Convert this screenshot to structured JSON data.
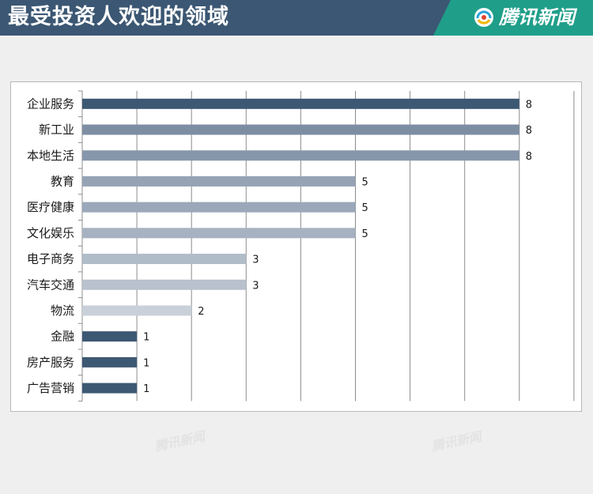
{
  "header": {
    "title": "最受投资人欢迎的领域",
    "logo_text": "腾讯新闻",
    "logo_icon": "tencent-news-logo-icon",
    "watermark_text": "腾讯新闻"
  },
  "colors": {
    "header_bg": "#3b5773",
    "logo_bg": "#1f9e89",
    "page_bg": "#efefef"
  },
  "chart_data": {
    "type": "bar",
    "orientation": "horizontal",
    "title": "",
    "xlabel": "",
    "ylabel": "",
    "xlim": [
      0,
      9
    ],
    "grid": true,
    "legend": "none",
    "categories": [
      "企业服务",
      "新工业",
      "本地生活",
      "教育",
      "医疗健康",
      "文化娱乐",
      "电子商务",
      "汽车交通",
      "物流",
      "金融",
      "房产服务",
      "广告营销"
    ],
    "values": [
      8,
      8,
      8,
      5,
      5,
      5,
      3,
      3,
      2,
      1,
      1,
      1
    ],
    "data_labels": [
      "8",
      "8",
      "8",
      "5",
      "5",
      "5",
      "3",
      "3",
      "2",
      "1",
      "1",
      "1"
    ],
    "colors": [
      "#3d5873",
      "#7d8ea3",
      "#8797ab",
      "#95a3b5",
      "#9aa8b9",
      "#a6b2c1",
      "#b1bcc9",
      "#b8c1cd",
      "#c9d0d9",
      "#3d5873",
      "#3d5873",
      "#3d5873"
    ]
  }
}
